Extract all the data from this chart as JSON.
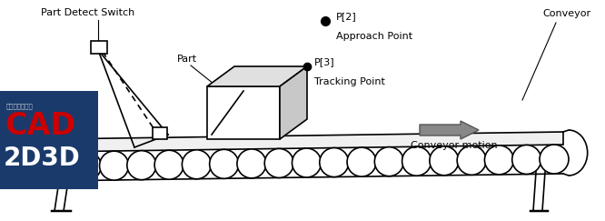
{
  "bg_color": "#ffffff",
  "line_color": "#000000",
  "box_blue": "#1a3a6b",
  "cad_red": "#cc0000",
  "label_part_detect": "Part Detect Switch",
  "label_part": "Part",
  "label_p2": "P[2]",
  "label_approach": "Approach Point",
  "label_p3": "P[3]",
  "label_tracking": "Tracking Point",
  "label_conveyor": "Conveyor",
  "label_motion": "Conveyor motion",
  "label_cad": "CAD",
  "label_2d3d": "2D3D",
  "label_expert": "工业自动化专家",
  "figsize": [
    6.66,
    2.43
  ],
  "dpi": 100
}
